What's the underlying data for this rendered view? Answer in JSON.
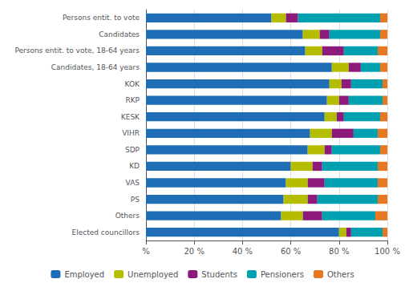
{
  "chart_data": {
    "type": "bar",
    "orientation": "horizontal",
    "stacked": true,
    "categories": [
      "Persons entit. to vote",
      "Candidates",
      "Persons entit. to vote, 18-64 years",
      "Candidates, 18-64 years",
      "KOK",
      "RKP",
      "KESK",
      "VIHR",
      "SDP",
      "KD",
      "VAS",
      "PS",
      "Others",
      "Elected councillors"
    ],
    "series": [
      {
        "name": "Employed",
        "color": "#1f6eb5",
        "values": [
          52,
          65,
          66,
          77,
          76,
          75,
          74,
          68,
          67,
          60,
          58,
          57,
          56,
          80
        ]
      },
      {
        "name": "Unemployed",
        "color": "#b5bd00",
        "values": [
          6,
          7,
          7,
          7,
          5,
          5,
          5,
          9,
          7,
          9,
          9,
          10,
          9,
          3
        ]
      },
      {
        "name": "Students",
        "color": "#8b1a7a",
        "values": [
          5,
          4,
          9,
          5,
          4,
          4,
          3,
          9,
          3,
          4,
          7,
          4,
          8,
          2
        ]
      },
      {
        "name": "Pensioners",
        "color": "#00a0b0",
        "values": [
          34,
          21,
          14,
          8,
          13,
          14,
          15,
          10,
          20,
          23,
          22,
          25,
          22,
          13
        ]
      },
      {
        "name": "Others",
        "color": "#e87722",
        "values": [
          3,
          3,
          4,
          3,
          2,
          2,
          3,
          4,
          3,
          4,
          4,
          4,
          5,
          2
        ]
      }
    ],
    "xlim": [
      0,
      100
    ],
    "xticks": [
      {
        "value": 0,
        "label": "%"
      },
      {
        "value": 20,
        "label": "20 %"
      },
      {
        "value": 40,
        "label": "40 %"
      },
      {
        "value": 60,
        "label": "60 %"
      },
      {
        "value": 80,
        "label": "80 %"
      },
      {
        "value": 100,
        "label": "100 %"
      }
    ],
    "grid": true,
    "legend": "bottom"
  }
}
